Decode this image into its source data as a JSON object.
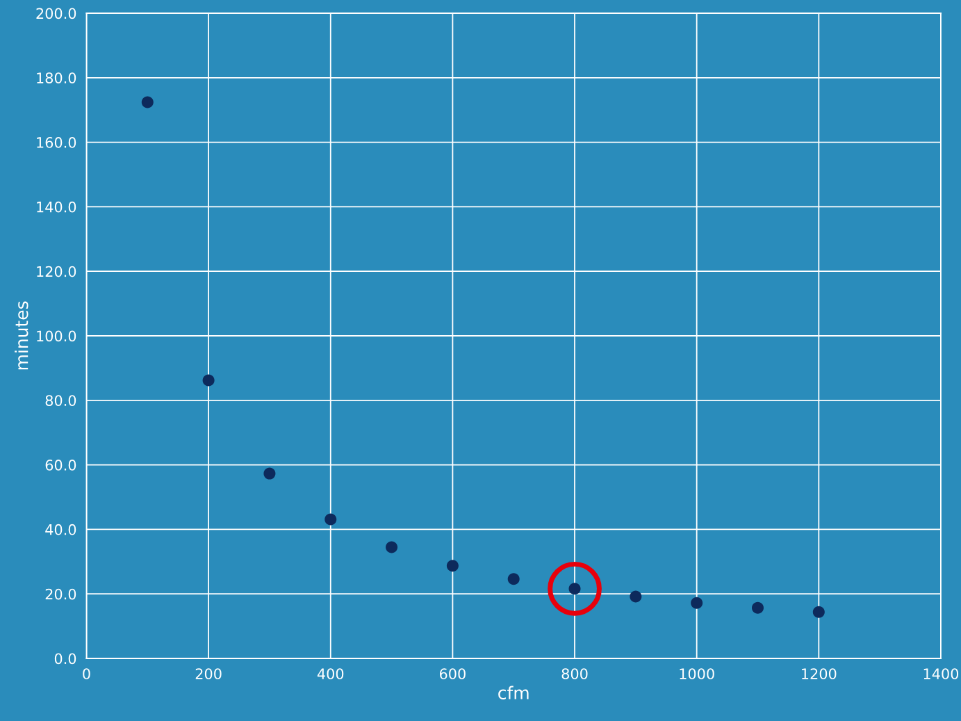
{
  "chart_data": {
    "type": "scatter",
    "xlabel": "cfm",
    "ylabel": "minutes",
    "series": [
      {
        "color": "#0d2a5c",
        "x": [
          100,
          200,
          300,
          400,
          500,
          600,
          700,
          800,
          900,
          1000,
          1100,
          1200
        ],
        "values": [
          172.4,
          86.2,
          57.3,
          43.1,
          34.5,
          28.7,
          24.6,
          21.6,
          19.2,
          17.2,
          15.7,
          14.4
        ]
      },
      {
        "color": "#e8000b",
        "marker": "circle",
        "x": [
          800
        ],
        "values": [
          21.6
        ]
      }
    ],
    "xlim": [
      0,
      1400
    ],
    "xticks": [
      0,
      200,
      400,
      600,
      800,
      1000,
      1200,
      1400
    ],
    "ylim": [
      0,
      200
    ],
    "yticks": [
      {
        "value": 0,
        "label": "0.0"
      },
      {
        "value": 20,
        "label": "20.0"
      },
      {
        "value": 40,
        "label": "40.0"
      },
      {
        "value": 60,
        "label": "60.0"
      },
      {
        "value": 80,
        "label": "80.0"
      },
      {
        "value": 100,
        "label": "100.0"
      },
      {
        "value": 120,
        "label": "120.0"
      },
      {
        "value": 140,
        "label": "140.0"
      },
      {
        "value": 160,
        "label": "160.0"
      },
      {
        "value": 180,
        "label": "180.0"
      },
      {
        "value": 200,
        "label": "200.0"
      }
    ],
    "grid": true,
    "legend": false
  }
}
